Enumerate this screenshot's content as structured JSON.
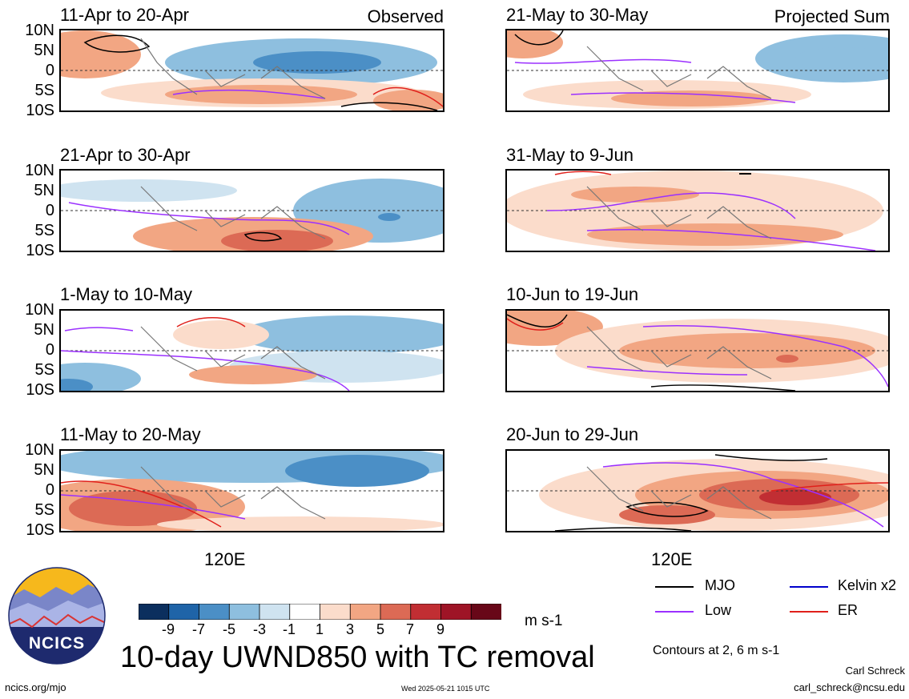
{
  "panels": [
    {
      "id": "p1",
      "title": "11-Apr to 20-Apr",
      "tag": "Observed"
    },
    {
      "id": "p2",
      "title": "21-Apr to 30-Apr",
      "tag": ""
    },
    {
      "id": "p3",
      "title": "1-May to 10-May",
      "tag": ""
    },
    {
      "id": "p4",
      "title": "11-May to 20-May",
      "tag": ""
    },
    {
      "id": "p5",
      "title": "21-May to 30-May",
      "tag": "Projected Sum"
    },
    {
      "id": "p6",
      "title": "31-May to 9-Jun",
      "tag": ""
    },
    {
      "id": "p7",
      "title": "10-Jun to 19-Jun",
      "tag": ""
    },
    {
      "id": "p8",
      "title": "20-Jun to 29-Jun",
      "tag": ""
    }
  ],
  "lat_labels": [
    "10N",
    "5N",
    "0",
    "5S",
    "10S"
  ],
  "lon_label": "120E",
  "colorbar": {
    "colors": [
      "#0b2f5e",
      "#1f64a8",
      "#4b8fc6",
      "#8ebfdf",
      "#cfe3f0",
      "#ffffff",
      "#fbdccb",
      "#f2a683",
      "#dc6a55",
      "#c12e33",
      "#9e1426",
      "#680718"
    ],
    "labels": [
      "-9",
      "-7",
      "-5",
      "-3",
      "-1",
      "1",
      "3",
      "5",
      "7",
      "9"
    ],
    "units": "m s-1"
  },
  "legend": {
    "items": [
      {
        "label": "MJO",
        "color": "#000000"
      },
      {
        "label": "Kelvin x2",
        "color": "#0000cc"
      },
      {
        "label": "Low",
        "color": "#9b30ff"
      },
      {
        "label": "ER",
        "color": "#e0201b"
      }
    ],
    "note": "Contours at 2, 6 m s-1"
  },
  "title": "10-day UWND850 with TC removal",
  "logo_text": "NCICS",
  "footer": {
    "left": "ncics.org/mjo",
    "center": "Wed 2025-05-21 1015 UTC",
    "author": "Carl Schreck",
    "email": "carl_schreck@ncsu.edu"
  }
}
